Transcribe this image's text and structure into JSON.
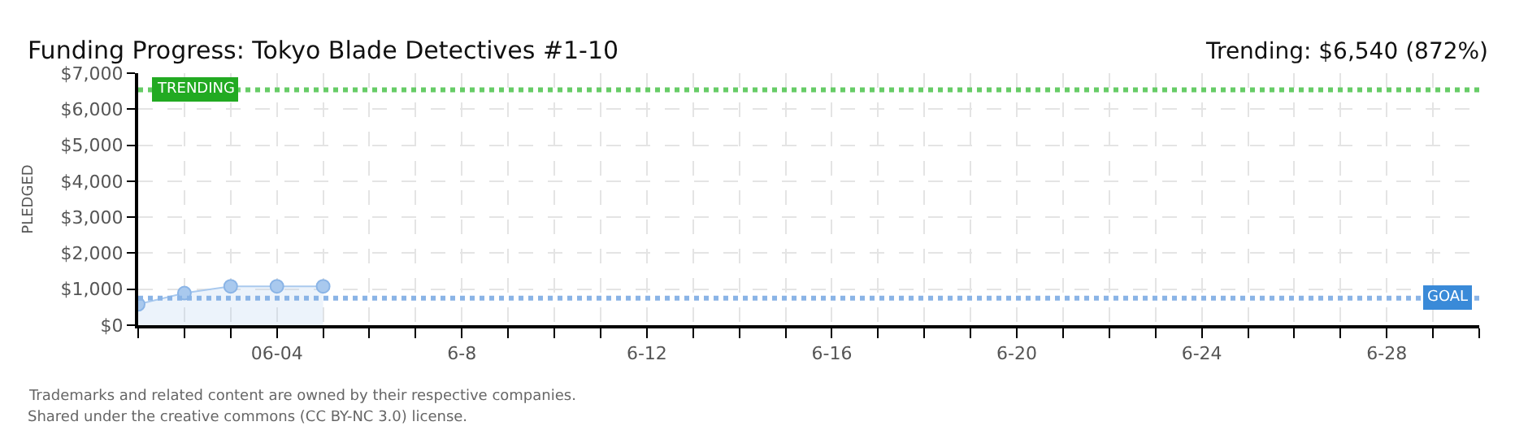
{
  "chart_data": {
    "type": "area",
    "title": "Funding Progress: Tokyo Blade Detectives #1-10",
    "subtitle": "Trending: $6,540 (872%)",
    "ylabel": "PLEDGED",
    "x": [
      "--06-01",
      "--06-02",
      "--06-03",
      "--06-04",
      "--06-05"
    ],
    "series": [
      {
        "color": "#a9c9ee",
        "values": [
          580,
          890,
          1080,
          1080,
          1080
        ]
      }
    ],
    "xlim": [
      "--06-01",
      "--06-30"
    ],
    "xticks": [
      {
        "value": "--06-01",
        "label": null
      },
      {
        "value": "--06-02",
        "label": null
      },
      {
        "value": "--06-03",
        "label": null
      },
      {
        "value": "--06-04",
        "label": "06-04"
      },
      {
        "value": "--06-05",
        "label": null
      },
      {
        "value": "--06-06",
        "label": null
      },
      {
        "value": "--06-07",
        "label": null
      },
      {
        "value": "--06-08",
        "label": "6-8"
      },
      {
        "value": "--06-09",
        "label": null
      },
      {
        "value": "--06-10",
        "label": null
      },
      {
        "value": "--06-11",
        "label": null
      },
      {
        "value": "--06-12",
        "label": "6-12"
      },
      {
        "value": "--06-13",
        "label": null
      },
      {
        "value": "--06-14",
        "label": null
      },
      {
        "value": "--06-15",
        "label": null
      },
      {
        "value": "--06-16",
        "label": "6-16"
      },
      {
        "value": "--06-17",
        "label": null
      },
      {
        "value": "--06-18",
        "label": null
      },
      {
        "value": "--06-19",
        "label": null
      },
      {
        "value": "--06-20",
        "label": "6-20"
      },
      {
        "value": "--06-21",
        "label": null
      },
      {
        "value": "--06-22",
        "label": null
      },
      {
        "value": "--06-23",
        "label": null
      },
      {
        "value": "--06-24",
        "label": "6-24"
      },
      {
        "value": "--06-25",
        "label": null
      },
      {
        "value": "--06-26",
        "label": null
      },
      {
        "value": "--06-27",
        "label": null
      },
      {
        "value": "--06-28",
        "label": "6-28"
      },
      {
        "value": "--06-29",
        "label": null
      },
      {
        "value": "--06-30",
        "label": null
      }
    ],
    "ylim": [
      0,
      7000
    ],
    "yticks": [
      {
        "value": 0,
        "label": "$0"
      },
      {
        "value": 1000,
        "label": "$1,000"
      },
      {
        "value": 2000,
        "label": "$2,000"
      },
      {
        "value": 3000,
        "label": "$3,000"
      },
      {
        "value": 4000,
        "label": "$4,000"
      },
      {
        "value": 5000,
        "label": "$5,000"
      },
      {
        "value": 6000,
        "label": "$6,000"
      },
      {
        "value": 7000,
        "label": "$7,000"
      }
    ],
    "ref_lines": [
      {
        "axis": "y",
        "value": 6540,
        "label": "TRENDING",
        "color": "#66cc66",
        "line_style": "dotted"
      },
      {
        "axis": "y",
        "value": 750,
        "label": "GOAL",
        "color": "#8ab4e6",
        "line_style": "dotted"
      }
    ],
    "annotations": [
      "Trademarks and related content are owned by their respective companies.",
      "Shared under the creative commons (CC BY-NC 3.0) license."
    ],
    "grid": true,
    "marker": "circle",
    "line_style": "solid"
  }
}
